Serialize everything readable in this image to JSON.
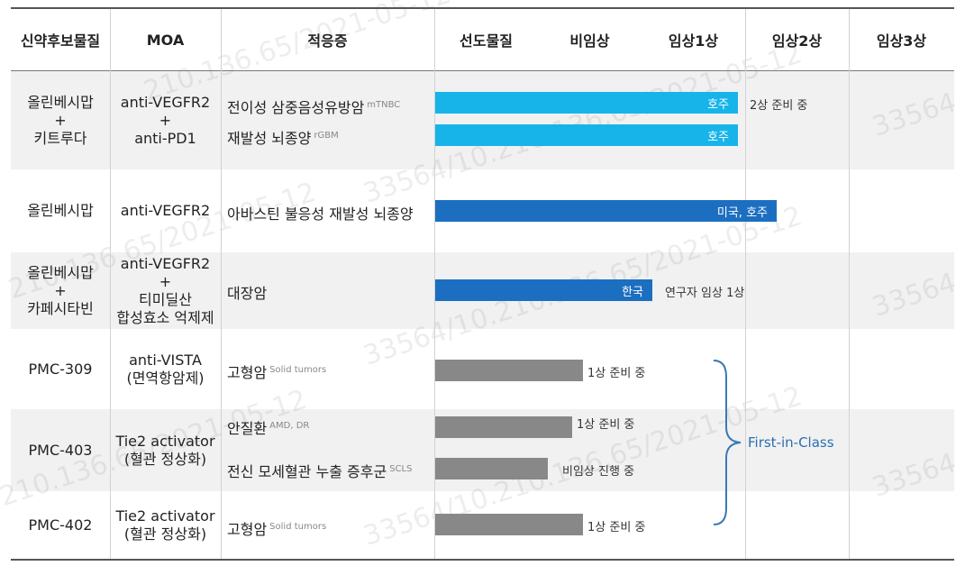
{
  "headers": {
    "candidate": "신약후보물질",
    "moa": "MOA",
    "indication": "적응증",
    "lead": "선도물질",
    "preclinical": "비임상",
    "phase1": "임상1상",
    "phase2": "임상2상",
    "phase3": "임상3상"
  },
  "rows": [
    {
      "candidate": [
        "올린베시맙",
        "+",
        "키트루다"
      ],
      "moa": [
        "anti-VEGFR2",
        "+",
        "anti-PD1"
      ],
      "indications": [
        {
          "name": "전이성 삼중음성유방암",
          "sup": "mTNBC",
          "bar_label": "호주",
          "color": "#17b4ea",
          "note": "2상 준비 중"
        },
        {
          "name": "재발성 뇌종양",
          "sup": "rGBM",
          "bar_label": "호주",
          "color": "#17b4ea",
          "note": ""
        }
      ]
    },
    {
      "candidate": [
        "올린베시맙"
      ],
      "moa": [
        "anti-VEGFR2"
      ],
      "indications": [
        {
          "name": "아바스틴 불응성 재발성 뇌종양",
          "sup": "",
          "bar_label": "미국, 호주",
          "color": "#1c6fc0",
          "note": ""
        }
      ]
    },
    {
      "candidate": [
        "올린베시맙",
        "+",
        "카페시타빈"
      ],
      "moa": [
        "anti-VEGFR2",
        "+",
        "티미딜산",
        "합성효소 억제제"
      ],
      "indications": [
        {
          "name": "대장암",
          "sup": "",
          "bar_label": "한국",
          "color": "#1c6fc0",
          "note": "연구자 임상 1상"
        }
      ]
    },
    {
      "candidate": [
        "PMC-309"
      ],
      "moa": [
        "anti-VISTA",
        "(면역항암제)"
      ],
      "indications": [
        {
          "name": "고형암",
          "sup": "Solid tumors",
          "bar_label": "",
          "color": "#888888",
          "note": "1상 준비 중"
        }
      ]
    },
    {
      "candidate": [
        "PMC-403"
      ],
      "moa": [
        "Tie2 activator",
        "(혈관 정상화)"
      ],
      "indications": [
        {
          "name": "안질환",
          "sup": "AMD, DR",
          "bar_label": "",
          "color": "#888888",
          "note": "1상 준비 중"
        },
        {
          "name": "전신 모세혈관 누출 증후군",
          "sup": "SCLS",
          "bar_label": "",
          "color": "#888888",
          "note": "비임상 진행 중"
        }
      ]
    },
    {
      "candidate": [
        "PMC-402"
      ],
      "moa": [
        "Tie2 activator",
        "(혈관 정상화)"
      ],
      "indications": [
        {
          "name": "고형암",
          "sup": "Solid tumors",
          "bar_label": "",
          "color": "#888888",
          "note": "1상 준비 중"
        }
      ]
    }
  ],
  "first_in_class": "First-in-Class",
  "watermarks": [
    "33564",
    "210.136.65/2021-05-12",
    "33564/10.210.136.65/2021-05-12"
  ]
}
